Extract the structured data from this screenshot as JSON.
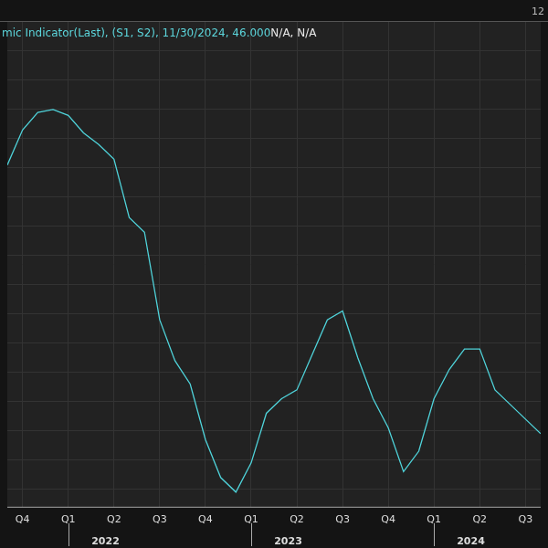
{
  "chart_data": {
    "type": "line",
    "title": "mic Indicator(Last), (S1, S2), 11/30/2024, 46.000",
    "subtitle": "N/A, N/A",
    "annotations": {
      "corner": "12",
      "years": [
        "2022",
        "2023",
        "2024"
      ]
    },
    "categories": [
      null,
      "Q4",
      null,
      null,
      "Q1",
      null,
      null,
      "Q2",
      null,
      null,
      "Q3",
      null,
      null,
      "Q4",
      null,
      null,
      "Q1",
      null,
      null,
      "Q2",
      null,
      null,
      "Q3",
      null,
      null,
      "Q4",
      null,
      null,
      "Q1",
      null,
      null,
      "Q2",
      null,
      null,
      "Q3",
      null
    ],
    "values": [
      56.1,
      57.3,
      57.9,
      58.0,
      57.8,
      57.2,
      56.8,
      56.3,
      54.3,
      53.8,
      50.8,
      49.4,
      48.6,
      46.7,
      45.4,
      44.9,
      45.9,
      47.6,
      48.1,
      48.4,
      49.6,
      50.8,
      51.1,
      49.5,
      48.1,
      47.1,
      45.6,
      46.3,
      48.1,
      49.1,
      49.8,
      49.8,
      48.4,
      47.9,
      47.4,
      46.9
    ],
    "color": "#4fd3da",
    "marker": "none",
    "line_style": "solid",
    "ylim": [
      44.4,
      61
    ],
    "yticks": [
      45,
      46,
      47,
      48,
      49,
      50,
      51,
      52,
      53,
      54,
      55,
      56,
      57,
      58,
      59,
      60
    ],
    "grid": true,
    "tick_labels": "x"
  }
}
